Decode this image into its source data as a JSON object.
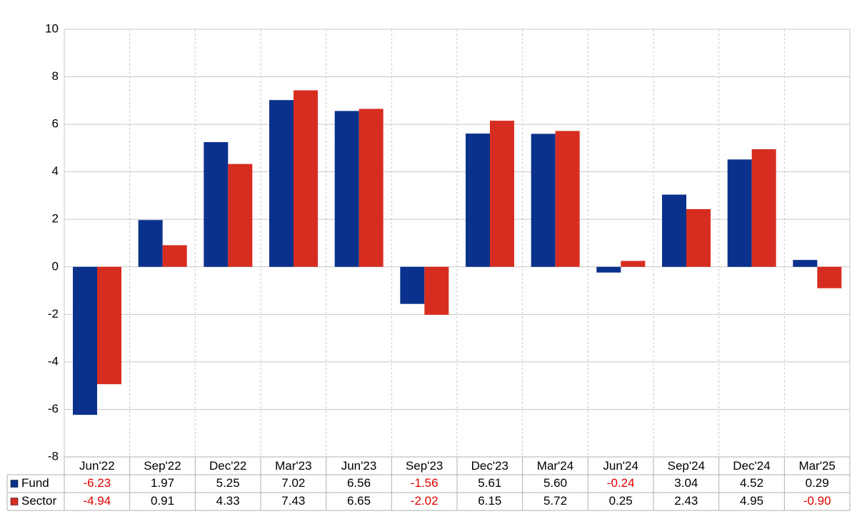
{
  "chart_data": {
    "type": "bar",
    "categories": [
      "Jun'22",
      "Sep'22",
      "Dec'22",
      "Mar'23",
      "Jun'23",
      "Sep'23",
      "Dec'23",
      "Mar'24",
      "Jun'24",
      "Sep'24",
      "Dec'24",
      "Mar'25"
    ],
    "series": [
      {
        "name": "Fund",
        "color": "#0a318c",
        "values": [
          -6.23,
          1.97,
          5.25,
          7.02,
          6.56,
          -1.56,
          5.61,
          5.6,
          -0.24,
          3.04,
          4.52,
          0.29
        ],
        "value_labels": [
          "-6.23",
          "1.97",
          "5.25",
          "7.02",
          "6.56",
          "-1.56",
          "5.61",
          "5.60",
          "-0.24",
          "3.04",
          "4.52",
          "0.29"
        ]
      },
      {
        "name": "Sector",
        "color": "#d62d20",
        "values": [
          -4.94,
          0.91,
          4.33,
          7.43,
          6.65,
          -2.02,
          6.15,
          5.72,
          0.25,
          2.43,
          4.95,
          -0.9
        ],
        "value_labels": [
          "-4.94",
          "0.91",
          "4.33",
          "7.43",
          "6.65",
          "-2.02",
          "6.15",
          "5.72",
          "0.25",
          "2.43",
          "4.95",
          "-0.90"
        ]
      }
    ],
    "ylim": [
      -8,
      10
    ],
    "yticks": [
      -8,
      -6,
      -4,
      -2,
      0,
      2,
      4,
      6,
      8,
      10
    ],
    "grid": true
  }
}
